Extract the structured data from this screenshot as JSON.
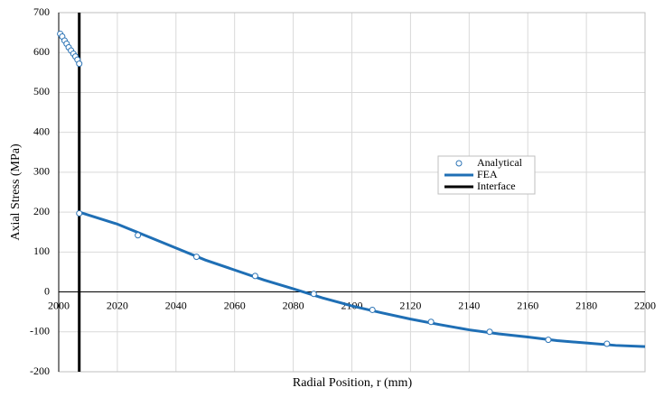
{
  "chart_data": {
    "type": "line",
    "x_label": "Radial Position, r (mm)",
    "y_label": "Axial Stress (MPa)",
    "xlim": [
      2000,
      2200
    ],
    "xticks": [
      2000,
      2020,
      2040,
      2060,
      2080,
      2100,
      2120,
      2140,
      2160,
      2180,
      2200
    ],
    "ylim": [
      -200,
      700
    ],
    "yticks": [
      -200,
      -100,
      0,
      100,
      200,
      300,
      400,
      500,
      600,
      700
    ],
    "grid": true,
    "series": [
      {
        "name": "Analytical",
        "type": "scatter",
        "color": "#2e75b6",
        "x": [
          2000.5,
          2001.2,
          2002,
          2002.7,
          2003.4,
          2004.2,
          2005,
          2005.7,
          2006.4,
          2007,
          2007,
          2027,
          2047,
          2067,
          2087,
          2107,
          2127,
          2147,
          2167,
          2187
        ],
        "values": [
          647,
          640,
          630,
          622,
          613,
          605,
          597,
          590,
          582,
          572,
          197,
          142,
          88,
          40,
          -5,
          -45,
          -75,
          -100,
          -120,
          -130
        ]
      },
      {
        "name": "FEA",
        "type": "line",
        "color": "#1f6fb5",
        "x": [
          2007,
          2010,
          2020,
          2030,
          2040,
          2050,
          2060,
          2070,
          2080,
          2090,
          2100,
          2110,
          2120,
          2130,
          2140,
          2150,
          2160,
          2170,
          2180,
          2190,
          2200
        ],
        "values": [
          200,
          193,
          170,
          140,
          110,
          80,
          55,
          30,
          8,
          -15,
          -35,
          -52,
          -68,
          -82,
          -95,
          -105,
          -113,
          -122,
          -128,
          -134,
          -137
        ]
      },
      {
        "name": "Interface",
        "type": "line",
        "color": "#000000",
        "x": [
          2007,
          2007
        ],
        "values": [
          -200,
          700
        ]
      }
    ]
  }
}
